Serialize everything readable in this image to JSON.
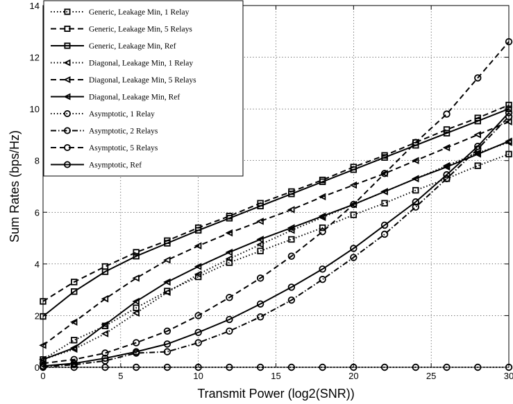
{
  "chart_data": {
    "type": "line",
    "title": "",
    "xlabel": "Transmit Power (log2(SNR))",
    "ylabel": "Sum Rates (bps/Hz)",
    "xlim": [
      0,
      30
    ],
    "ylim": [
      0,
      14
    ],
    "xticks": [
      0,
      5,
      10,
      15,
      20,
      25,
      30
    ],
    "yticks": [
      0,
      2,
      4,
      6,
      8,
      10,
      12,
      14
    ],
    "grid": true,
    "legend_position": "top-left",
    "x": [
      0,
      2,
      4,
      6,
      8,
      10,
      12,
      14,
      16,
      18,
      20,
      22,
      24,
      26,
      28,
      30
    ],
    "series": [
      {
        "name": "Generic, Leakage Min, 1 Relay",
        "marker": "square",
        "dash": "dotted",
        "values": [
          0.3,
          1.05,
          1.6,
          2.3,
          2.95,
          3.5,
          4.05,
          4.5,
          4.95,
          5.4,
          5.9,
          6.35,
          6.85,
          7.3,
          7.8,
          8.25
        ]
      },
      {
        "name": "Generic, Leakage Min, 5 Relays",
        "marker": "square",
        "dash": "dashed",
        "values": [
          2.55,
          3.3,
          3.9,
          4.45,
          4.9,
          5.4,
          5.85,
          6.35,
          6.8,
          7.25,
          7.75,
          8.2,
          8.7,
          9.2,
          9.65,
          10.15
        ]
      },
      {
        "name": "Generic, Leakage Min, Ref",
        "marker": "square",
        "dash": "solid",
        "values": [
          1.97,
          2.93,
          3.7,
          4.3,
          4.8,
          5.3,
          5.77,
          6.24,
          6.71,
          7.18,
          7.65,
          8.12,
          8.59,
          9.06,
          9.53,
          10.0
        ]
      },
      {
        "name": "Diagonal, Leakage Min, 1 Relay",
        "marker": "triangle-left",
        "dash": "dotted",
        "values": [
          0.3,
          0.7,
          1.3,
          2.1,
          2.9,
          3.6,
          4.2,
          4.75,
          5.3,
          5.8,
          6.3,
          6.8,
          7.3,
          7.8,
          8.3,
          8.7
        ]
      },
      {
        "name": "Diagonal, Leakage Min, 5 Relays",
        "marker": "triangle-left",
        "dash": "dashed",
        "values": [
          0.85,
          1.75,
          2.65,
          3.45,
          4.15,
          4.7,
          5.2,
          5.65,
          6.1,
          6.6,
          7.05,
          7.5,
          8.0,
          8.5,
          9.0,
          9.5
        ]
      },
      {
        "name": "Diagonal, Leakage Min, Ref",
        "marker": "triangle-left",
        "dash": "solid",
        "values": [
          0.3,
          0.75,
          1.65,
          2.55,
          3.3,
          3.9,
          4.45,
          4.95,
          5.4,
          5.85,
          6.3,
          6.8,
          7.3,
          7.75,
          8.25,
          8.75
        ]
      },
      {
        "name": "Asymptotic, 1 Relay",
        "marker": "circle",
        "dash": "dotted",
        "values": [
          0.0,
          0.0,
          0.0,
          0.0,
          0.0,
          0.0,
          0.0,
          0.0,
          0.0,
          0.0,
          0.0,
          0.0,
          0.0,
          0.0,
          0.0,
          0.0
        ]
      },
      {
        "name": "Asymptotic, 2 Relays",
        "marker": "circle",
        "dash": "dashdot",
        "values": [
          0.02,
          0.1,
          0.25,
          0.55,
          0.6,
          0.95,
          1.4,
          1.95,
          2.6,
          3.4,
          4.25,
          5.15,
          6.2,
          7.3,
          8.45,
          9.7
        ]
      },
      {
        "name": "Asymptotic, 5 Relays",
        "marker": "circle",
        "dash": "dashed",
        "values": [
          0.15,
          0.3,
          0.55,
          0.95,
          1.4,
          2.0,
          2.7,
          3.45,
          4.3,
          5.25,
          6.3,
          7.5,
          8.7,
          9.8,
          11.2,
          12.6
        ]
      },
      {
        "name": "Asymptotic, Ref",
        "marker": "circle",
        "dash": "solid",
        "values": [
          0.05,
          0.15,
          0.35,
          0.6,
          0.9,
          1.35,
          1.85,
          2.45,
          3.1,
          3.8,
          4.6,
          5.5,
          6.4,
          7.45,
          8.55,
          9.85
        ]
      }
    ]
  }
}
